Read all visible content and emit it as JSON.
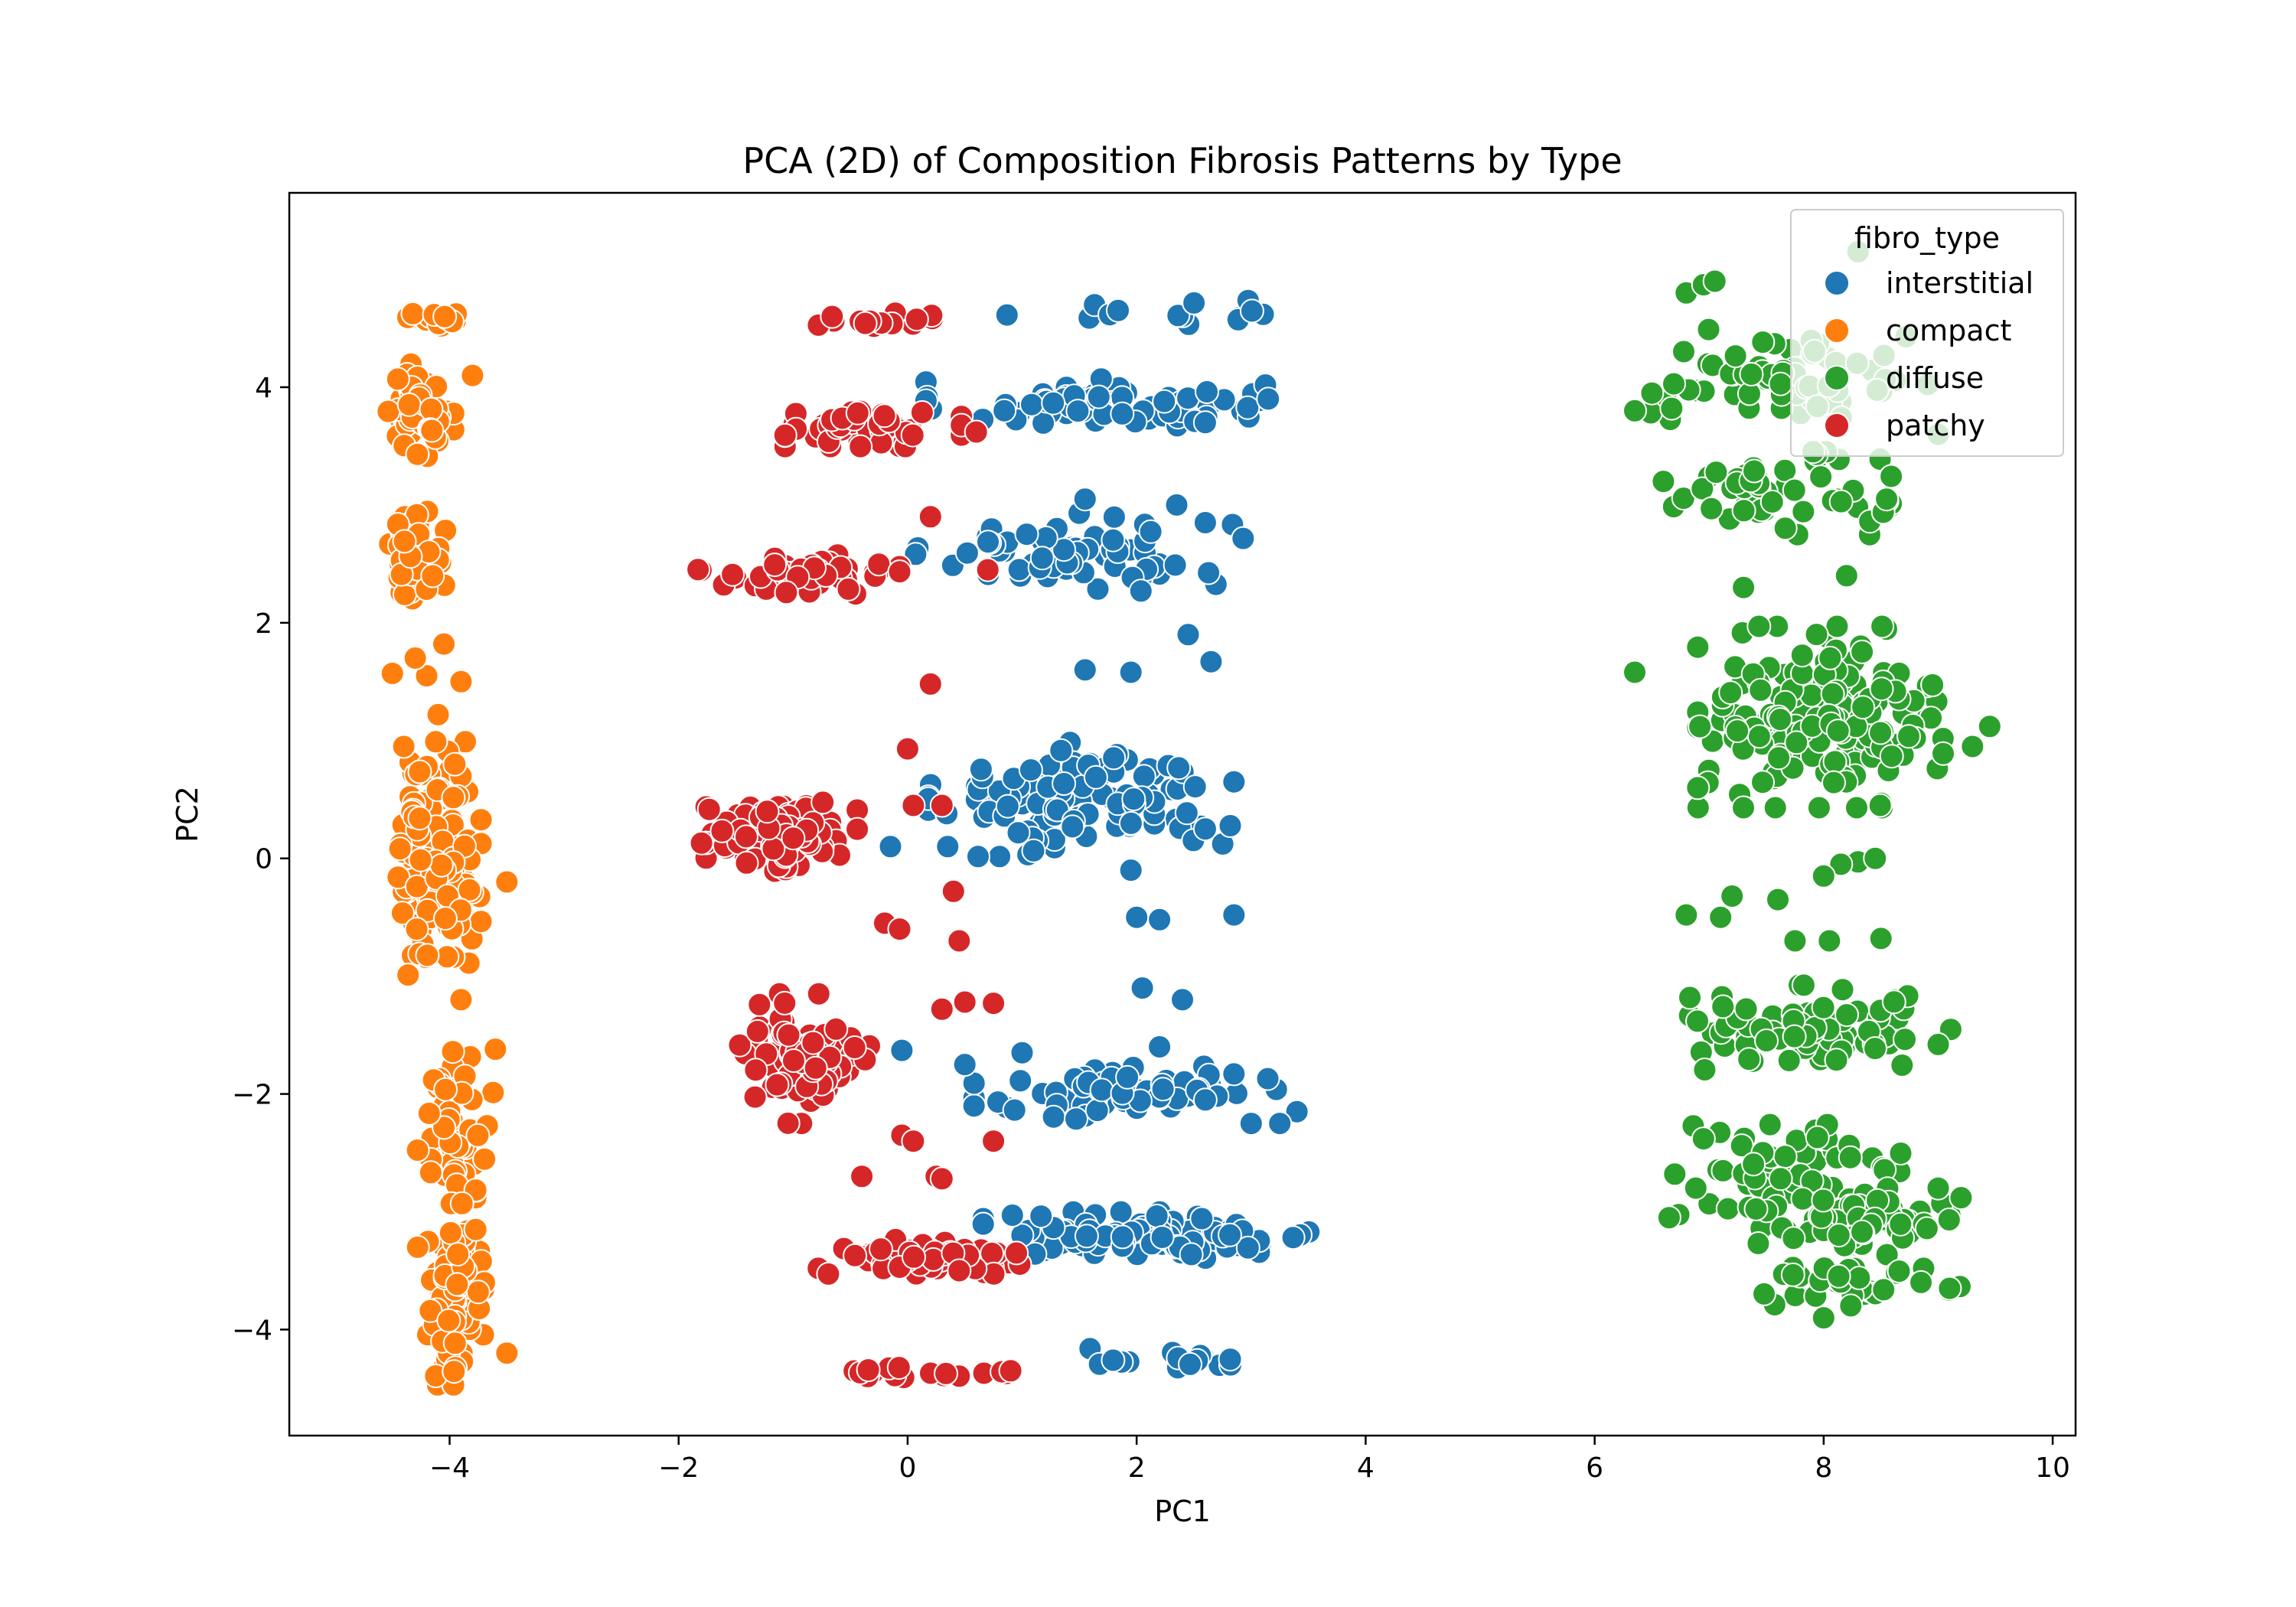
{
  "chart_data": {
    "type": "scatter",
    "title": "PCA (2D) of Composition Fibrosis Patterns by Type",
    "xlabel": "PC1",
    "ylabel": "PC2",
    "xlim": [
      -5.4,
      10.2
    ],
    "ylim": [
      -4.9,
      5.65
    ],
    "xticks": [
      -4,
      -2,
      0,
      2,
      4,
      6,
      8,
      10
    ],
    "xtick_labels": [
      "−4",
      "−2",
      "0",
      "2",
      "4",
      "6",
      "8",
      "10"
    ],
    "yticks": [
      -4,
      -2,
      0,
      2,
      4
    ],
    "ytick_labels": [
      "−4",
      "−2",
      "0",
      "2",
      "4"
    ],
    "grid": false,
    "legend": {
      "title": "fibro_type",
      "placement": "top-right"
    },
    "series": [
      {
        "name": "interstitial",
        "color": "#1f77b4",
        "clusters": [
          {
            "cx": 2.2,
            "cy": 4.65,
            "sx": 0.75,
            "sy": 0.06,
            "n": 14
          },
          {
            "cx": 1.7,
            "cy": 3.85,
            "sx": 0.7,
            "sy": 0.1,
            "n": 70
          },
          {
            "cx": 1.5,
            "cy": 2.6,
            "sx": 0.65,
            "sy": 0.15,
            "n": 65
          },
          {
            "cx": 1.5,
            "cy": 0.5,
            "sx": 0.6,
            "sy": 0.22,
            "n": 130
          },
          {
            "cx": 1.9,
            "cy": -2.0,
            "sx": 0.6,
            "sy": 0.12,
            "n": 75
          },
          {
            "cx": 2.2,
            "cy": -3.2,
            "sx": 0.7,
            "sy": 0.09,
            "n": 110
          },
          {
            "cx": 2.3,
            "cy": -4.25,
            "sx": 0.5,
            "sy": 0.04,
            "n": 16
          }
        ],
        "points": [
          [
            3.15,
            3.9
          ],
          [
            2.6,
            3.7
          ],
          [
            1.55,
            3.05
          ],
          [
            2.6,
            2.85
          ],
          [
            2.35,
            3.0
          ],
          [
            1.55,
            1.6
          ],
          [
            2.45,
            1.9
          ],
          [
            1.95,
            1.58
          ],
          [
            2.65,
            1.67
          ],
          [
            2.65,
            1.67
          ],
          [
            -0.15,
            0.1
          ],
          [
            0.35,
            0.1
          ],
          [
            2.85,
            0.65
          ],
          [
            2.6,
            0.25
          ],
          [
            1.95,
            -0.1
          ],
          [
            2.0,
            -0.5
          ],
          [
            2.85,
            -0.48
          ],
          [
            2.2,
            -0.52
          ],
          [
            2.05,
            -1.1
          ],
          [
            2.4,
            -1.2
          ],
          [
            -0.05,
            -1.63
          ],
          [
            2.6,
            -2.05
          ],
          [
            3.4,
            -2.15
          ],
          [
            3.0,
            -2.25
          ],
          [
            3.25,
            -2.25
          ],
          [
            2.85,
            -1.83
          ],
          [
            2.2,
            -1.6
          ],
          [
            1.0,
            -1.65
          ],
          [
            0.5,
            -1.75
          ]
        ]
      },
      {
        "name": "compact",
        "color": "#ff7f0e",
        "clusters": [
          {
            "cx": -4.1,
            "cy": 4.57,
            "sx": 0.12,
            "sy": 0.03,
            "n": 16
          },
          {
            "cx": -4.25,
            "cy": 3.8,
            "sx": 0.13,
            "sy": 0.18,
            "n": 60
          },
          {
            "cx": -4.3,
            "cy": 2.6,
            "sx": 0.12,
            "sy": 0.18,
            "n": 60
          },
          {
            "cx": -4.1,
            "cy": 0.0,
            "sx": 0.17,
            "sy": 0.45,
            "n": 150
          },
          {
            "cx": -3.95,
            "cy": -2.3,
            "sx": 0.15,
            "sy": 0.3,
            "n": 55
          },
          {
            "cx": -3.95,
            "cy": -3.7,
            "sx": 0.16,
            "sy": 0.35,
            "n": 80
          }
        ],
        "points": [
          [
            -4.5,
            1.57
          ],
          [
            -4.05,
            1.82
          ],
          [
            -4.2,
            1.55
          ],
          [
            -3.9,
            1.5
          ],
          [
            -4.3,
            1.7
          ],
          [
            -4.1,
            1.22
          ],
          [
            -4.4,
            0.95
          ],
          [
            -3.5,
            -0.2
          ],
          [
            -3.9,
            -1.2
          ],
          [
            -3.6,
            -1.62
          ],
          [
            -3.8,
            4.1
          ],
          [
            -3.5,
            -4.2
          ]
        ]
      },
      {
        "name": "diffuse",
        "color": "#2ca02c",
        "clusters": [
          {
            "cx": 7.7,
            "cy": 4.05,
            "sx": 0.55,
            "sy": 0.2,
            "n": 70
          },
          {
            "cx": 7.6,
            "cy": 3.1,
            "sx": 0.45,
            "sy": 0.16,
            "n": 55
          },
          {
            "cx": 8.0,
            "cy": 1.2,
            "sx": 0.5,
            "sy": 0.35,
            "n": 190
          },
          {
            "cx": 7.9,
            "cy": -1.45,
            "sx": 0.55,
            "sy": 0.17,
            "n": 80
          },
          {
            "cx": 7.7,
            "cy": -2.7,
            "sx": 0.5,
            "sy": 0.2,
            "n": 65
          },
          {
            "cx": 8.3,
            "cy": -3.1,
            "sx": 0.45,
            "sy": 0.12,
            "n": 60
          },
          {
            "cx": 8.2,
            "cy": -3.6,
            "sx": 0.45,
            "sy": 0.09,
            "n": 30
          }
        ],
        "points": [
          [
            6.8,
            4.8
          ],
          [
            6.95,
            4.87
          ],
          [
            7.05,
            4.9
          ],
          [
            8.3,
            5.15
          ],
          [
            6.5,
            3.95
          ],
          [
            6.35,
            3.8
          ],
          [
            9.0,
            3.6
          ],
          [
            8.55,
            3.05
          ],
          [
            6.6,
            3.2
          ],
          [
            7.3,
            2.3
          ],
          [
            8.2,
            2.4
          ],
          [
            6.35,
            1.58
          ],
          [
            9.45,
            1.12
          ],
          [
            9.3,
            0.95
          ],
          [
            6.9,
            0.6
          ],
          [
            7.75,
            -0.7
          ],
          [
            8.05,
            -0.7
          ],
          [
            8.5,
            -0.68
          ],
          [
            7.2,
            -0.32
          ],
          [
            7.6,
            -0.35
          ],
          [
            8.3,
            -0.03
          ],
          [
            8.15,
            -0.05
          ],
          [
            8.0,
            -0.15
          ],
          [
            8.45,
            0.0
          ],
          [
            6.8,
            -0.48
          ],
          [
            7.1,
            -0.5
          ],
          [
            9.0,
            -1.58
          ],
          [
            6.65,
            -3.05
          ],
          [
            6.7,
            -2.68
          ],
          [
            6.95,
            -2.38
          ],
          [
            9.2,
            -2.88
          ],
          [
            9.0,
            -2.8
          ],
          [
            8.0,
            -3.9
          ],
          [
            9.1,
            -3.65
          ],
          [
            8.85,
            -3.6
          ]
        ]
      },
      {
        "name": "patchy",
        "color": "#d62728",
        "clusters": [
          {
            "cx": -0.05,
            "cy": 4.58,
            "sx": 0.4,
            "sy": 0.03,
            "n": 16
          },
          {
            "cx": -0.3,
            "cy": 3.65,
            "sx": 0.35,
            "sy": 0.07,
            "n": 55
          },
          {
            "cx": -0.95,
            "cy": 2.4,
            "sx": 0.4,
            "sy": 0.08,
            "n": 60
          },
          {
            "cx": -1.1,
            "cy": 0.2,
            "sx": 0.3,
            "sy": 0.15,
            "n": 95
          },
          {
            "cx": -0.95,
            "cy": -1.7,
            "sx": 0.28,
            "sy": 0.25,
            "n": 90
          },
          {
            "cx": 0.1,
            "cy": -3.4,
            "sx": 0.4,
            "sy": 0.08,
            "n": 60
          },
          {
            "cx": 0.15,
            "cy": -4.37,
            "sx": 0.35,
            "sy": 0.03,
            "n": 20
          }
        ],
        "points": [
          [
            0.6,
            3.62
          ],
          [
            0.2,
            2.9
          ],
          [
            0.7,
            2.45
          ],
          [
            0.2,
            1.48
          ],
          [
            0.0,
            0.93
          ],
          [
            0.3,
            0.45
          ],
          [
            0.05,
            0.45
          ],
          [
            -1.8,
            0.13
          ],
          [
            0.4,
            -0.28
          ],
          [
            -0.2,
            -0.55
          ],
          [
            -0.07,
            -0.6
          ],
          [
            0.45,
            -0.7
          ],
          [
            0.75,
            -1.23
          ],
          [
            0.5,
            -1.22
          ],
          [
            0.3,
            -1.28
          ],
          [
            -0.05,
            -2.35
          ],
          [
            0.05,
            -2.4
          ],
          [
            0.75,
            -2.4
          ],
          [
            -0.4,
            -2.7
          ],
          [
            0.25,
            -2.7
          ],
          [
            0.3,
            -2.72
          ],
          [
            0.9,
            -4.35
          ],
          [
            0.45,
            -3.5
          ],
          [
            0.95,
            -3.35
          ]
        ]
      }
    ]
  }
}
